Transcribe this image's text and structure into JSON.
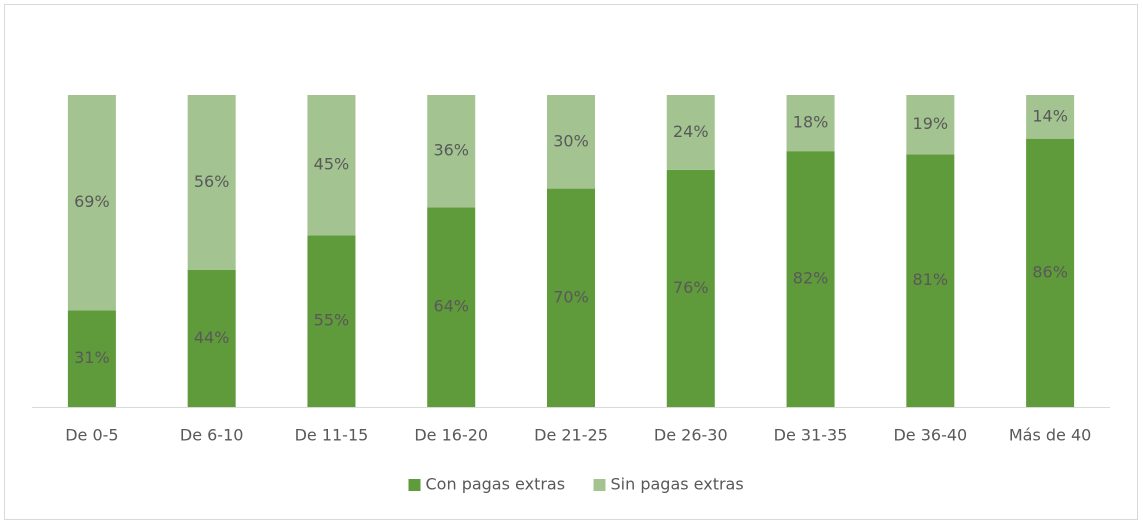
{
  "chart_data": {
    "type": "bar",
    "stacked": true,
    "categories": [
      "De 0-5",
      "De 6-10",
      "De 11-15",
      "De 16-20",
      "De 21-25",
      "De 26-30",
      "De 31-35",
      "De 36-40",
      "Más de 40"
    ],
    "series": [
      {
        "name": "Con pagas extras",
        "color": "#5f9a3b",
        "values": [
          31,
          44,
          55,
          64,
          70,
          76,
          82,
          81,
          86
        ],
        "value_labels": [
          "31%",
          "44%",
          "55%",
          "64%",
          "70%",
          "76%",
          "82%",
          "81%",
          "86%"
        ]
      },
      {
        "name": "Sin pagas extras",
        "color": "#a3c490",
        "values": [
          69,
          56,
          45,
          36,
          30,
          24,
          18,
          19,
          14
        ],
        "value_labels": [
          "69%",
          "56%",
          "45%",
          "36%",
          "30%",
          "24%",
          "18%",
          "19%",
          "14%"
        ]
      }
    ],
    "ylim": [
      0,
      100
    ],
    "legend": "bottom"
  }
}
